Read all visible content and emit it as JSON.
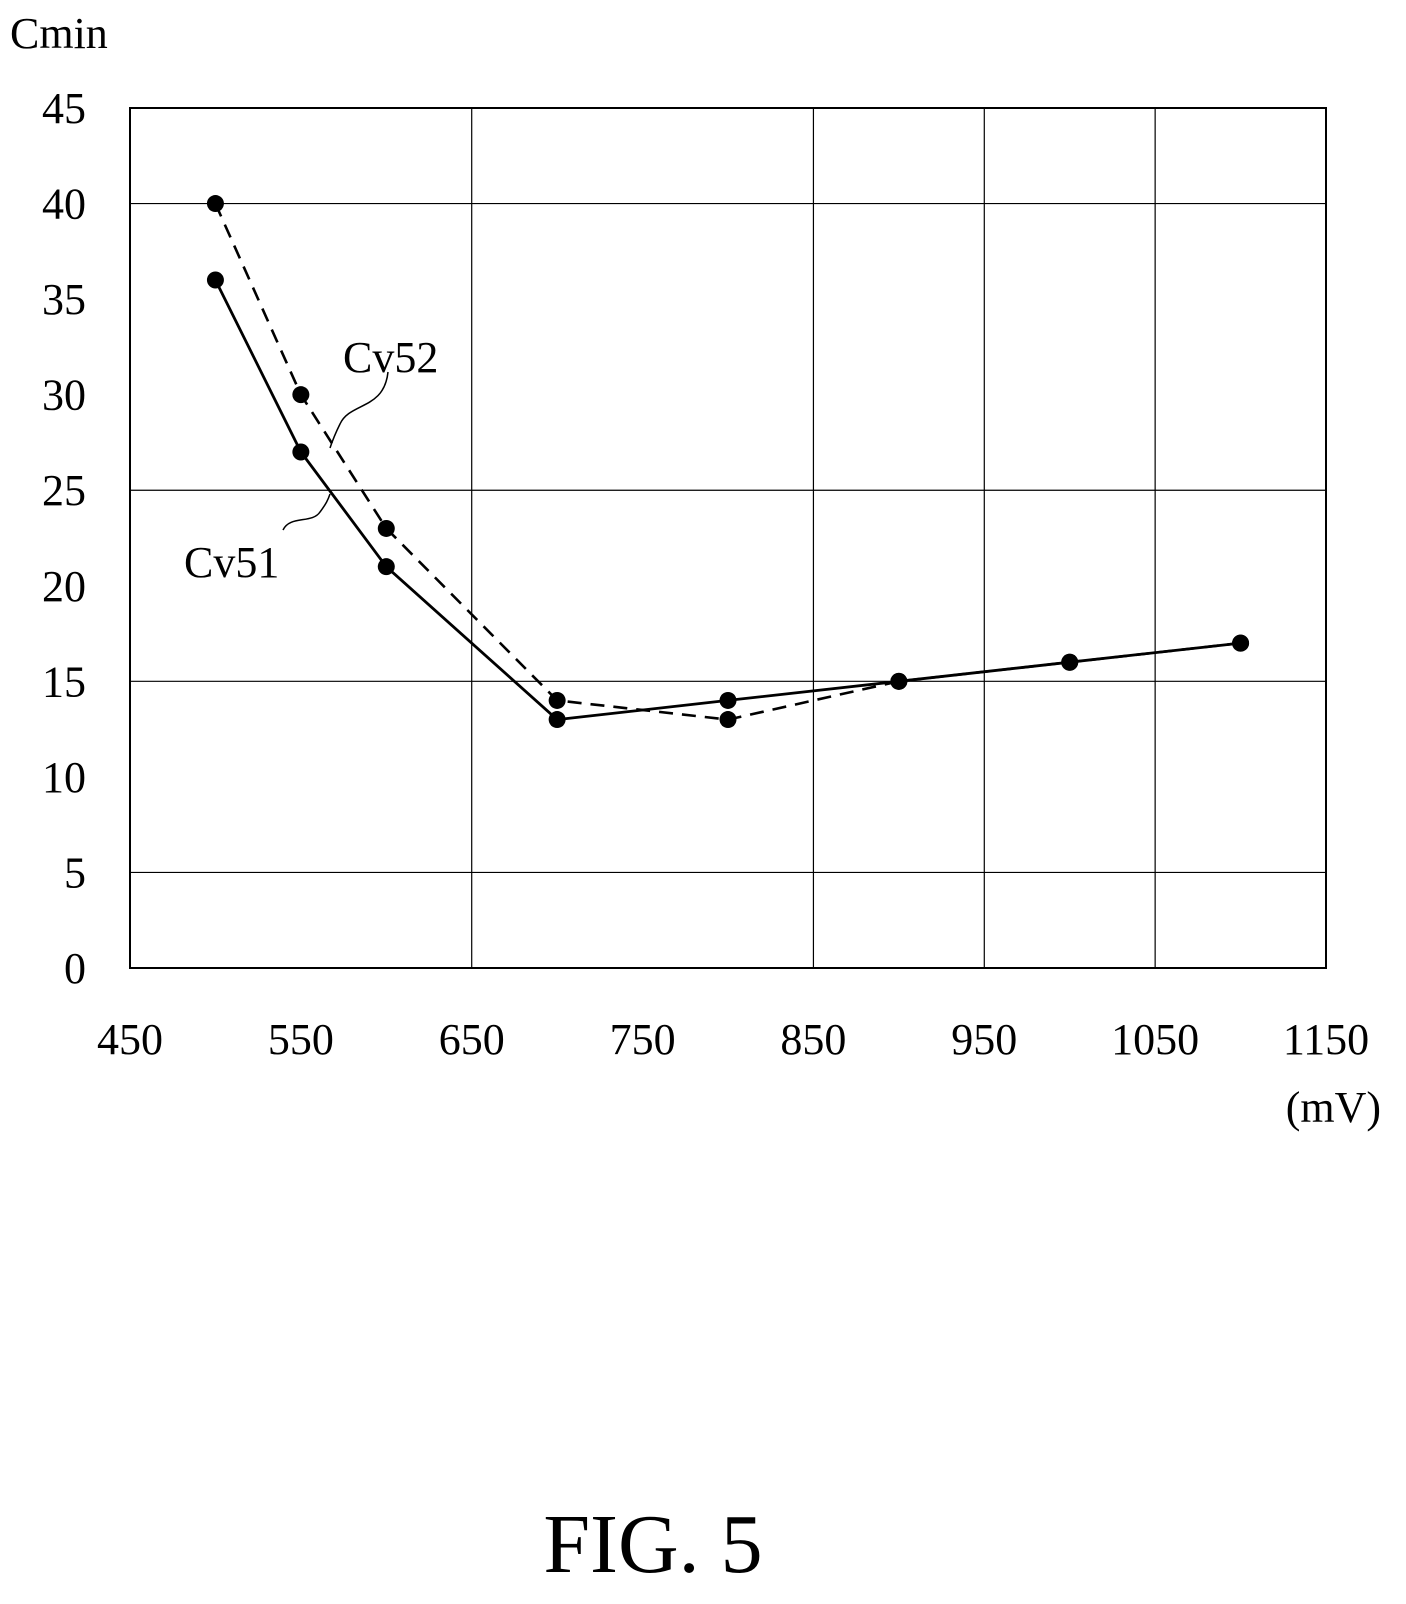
{
  "chart_data": {
    "type": "line",
    "ylabel": "Cmin",
    "xlabel": "(mV)",
    "figure_caption": "FIG. 5",
    "xlim": [
      450,
      1150
    ],
    "ylim": [
      0,
      45
    ],
    "x_ticks": [
      "450",
      "550",
      "650",
      "750",
      "850",
      "950",
      "1050",
      "1150"
    ],
    "y_ticks": [
      "0",
      "5",
      "10",
      "15",
      "20",
      "25",
      "30",
      "35",
      "40",
      "45"
    ],
    "x_gridlines": [
      650,
      850,
      950,
      1050
    ],
    "y_gridlines": [
      5,
      15,
      25,
      40
    ],
    "grid": true,
    "series": [
      {
        "name": "Cv51",
        "line_style": "solid",
        "x": [
          500,
          550,
          600,
          700,
          800,
          900,
          1000,
          1100
        ],
        "y": [
          36,
          27,
          21,
          13,
          14,
          15,
          16,
          17
        ]
      },
      {
        "name": "Cv52",
        "line_style": "dashed",
        "x": [
          500,
          550,
          600,
          700,
          800,
          900,
          1000,
          1100
        ],
        "y": [
          40,
          30,
          23,
          14,
          13,
          15,
          16,
          17
        ]
      }
    ]
  }
}
